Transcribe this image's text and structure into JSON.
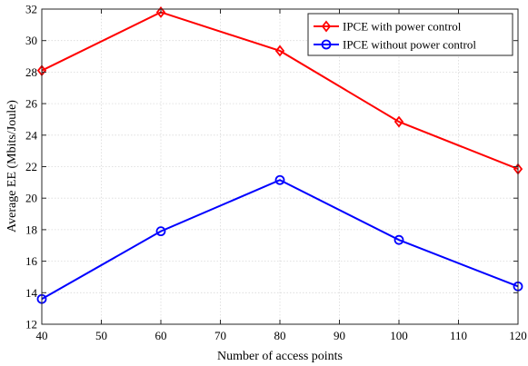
{
  "chart_data": {
    "type": "line",
    "title": "",
    "xlabel": "Number of access points",
    "ylabel": "Average EE (Mbits/Joule)",
    "xlim": [
      40,
      120
    ],
    "ylim": [
      12,
      32
    ],
    "xticks": [
      40,
      50,
      60,
      70,
      80,
      90,
      100,
      110,
      120
    ],
    "yticks": [
      12,
      14,
      16,
      18,
      20,
      22,
      24,
      26,
      28,
      30,
      32
    ],
    "x": [
      40,
      60,
      80,
      100,
      120
    ],
    "grid": true,
    "legend_position": "top-right",
    "series": [
      {
        "name": "IPCE with power control",
        "values": [
          28.1,
          31.8,
          29.35,
          24.85,
          21.85
        ],
        "color": "#ff0000",
        "marker": "diamond"
      },
      {
        "name": "IPCE without power control",
        "values": [
          13.6,
          17.9,
          21.15,
          17.35,
          14.4
        ],
        "color": "#0000ff",
        "marker": "circle"
      }
    ]
  }
}
